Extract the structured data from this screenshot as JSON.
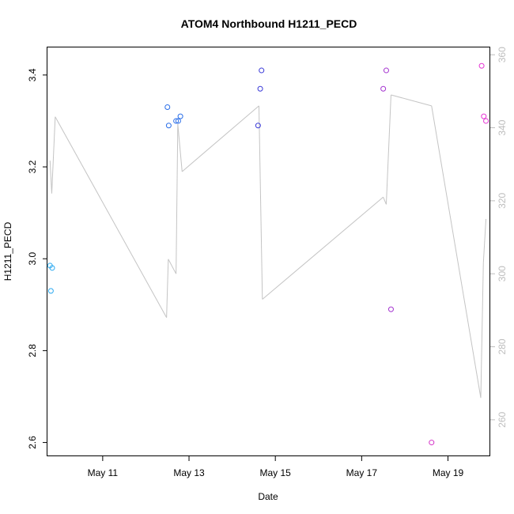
{
  "chart_data": {
    "type": "scatter",
    "title": "ATOM4 Northbound H1211_PECD",
    "xlabel": "Date",
    "ylabel": "H1211_PECD",
    "x_ticks": [
      "May 11",
      "May 13",
      "May 15",
      "May 17",
      "May 19"
    ],
    "y_ticks": [
      "2.6",
      "2.8",
      "3.0",
      "3.2",
      "3.4"
    ],
    "y_right_ticks": [
      "260",
      "280",
      "300",
      "320",
      "340",
      "360"
    ],
    "ylim": [
      2.57,
      3.46
    ],
    "y_right_lim": [
      250,
      362
    ],
    "xlim_days": [
      9.72,
      19.98
    ],
    "grid": false,
    "points_series": {
      "style": "open-circle",
      "points": [
        {
          "day": 9.78,
          "value": 2.985,
          "color": "#29a8f0"
        },
        {
          "day": 9.83,
          "value": 2.98,
          "color": "#29a8f0"
        },
        {
          "day": 9.8,
          "value": 2.93,
          "color": "#29a8f0"
        },
        {
          "day": 12.5,
          "value": 3.33,
          "color": "#2a6ee8"
        },
        {
          "day": 12.53,
          "value": 3.29,
          "color": "#2a6ee8"
        },
        {
          "day": 12.7,
          "value": 3.3,
          "color": "#2a6ee8"
        },
        {
          "day": 12.75,
          "value": 3.3,
          "color": "#2a6ee8"
        },
        {
          "day": 12.8,
          "value": 3.31,
          "color": "#2a6ee8"
        },
        {
          "day": 14.68,
          "value": 3.41,
          "color": "#3a3ad8"
        },
        {
          "day": 14.65,
          "value": 3.37,
          "color": "#3a3ad8"
        },
        {
          "day": 14.6,
          "value": 3.29,
          "color": "#3a3ad8"
        },
        {
          "day": 17.5,
          "value": 3.37,
          "color": "#a535d0"
        },
        {
          "day": 17.57,
          "value": 3.41,
          "color": "#a535d0"
        },
        {
          "day": 17.68,
          "value": 2.89,
          "color": "#a535d0"
        },
        {
          "day": 18.62,
          "value": 2.6,
          "color": "#d433c8"
        },
        {
          "day": 19.78,
          "value": 3.42,
          "color": "#e633d4"
        },
        {
          "day": 19.83,
          "value": 3.31,
          "color": "#e633d4"
        },
        {
          "day": 19.88,
          "value": 3.3,
          "color": "#e633d4"
        }
      ]
    },
    "line_series": {
      "axis": "right",
      "color": "#c4c4c4",
      "points": [
        {
          "day": 9.78,
          "value": 331
        },
        {
          "day": 9.82,
          "value": 322
        },
        {
          "day": 9.9,
          "value": 343
        },
        {
          "day": 12.48,
          "value": 288
        },
        {
          "day": 12.52,
          "value": 304
        },
        {
          "day": 12.7,
          "value": 300
        },
        {
          "day": 12.74,
          "value": 341
        },
        {
          "day": 12.84,
          "value": 328
        },
        {
          "day": 14.62,
          "value": 346
        },
        {
          "day": 14.7,
          "value": 293
        },
        {
          "day": 17.5,
          "value": 321
        },
        {
          "day": 17.57,
          "value": 319
        },
        {
          "day": 17.68,
          "value": 349
        },
        {
          "day": 18.62,
          "value": 346
        },
        {
          "day": 19.76,
          "value": 266
        },
        {
          "day": 19.82,
          "value": 303
        },
        {
          "day": 19.88,
          "value": 315
        }
      ]
    }
  }
}
